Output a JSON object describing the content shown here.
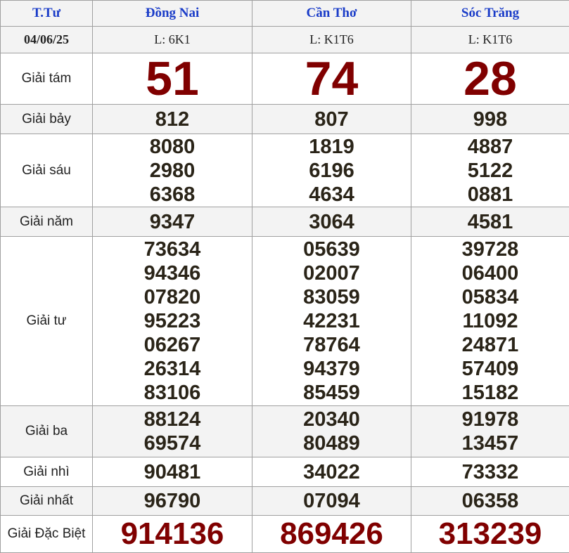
{
  "header": {
    "day": "T.Tư",
    "provinces": [
      "Đồng Nai",
      "Cần Thơ",
      "Sóc Trăng"
    ]
  },
  "lottery": {
    "date": "04/06/25",
    "codes": [
      "L: 6K1",
      "L: K1T6",
      "L: K1T6"
    ]
  },
  "prizes": [
    {
      "label": "Giải tám",
      "values": [
        [
          "51"
        ],
        [
          "74"
        ],
        [
          "28"
        ]
      ]
    },
    {
      "label": "Giải bảy",
      "values": [
        [
          "812"
        ],
        [
          "807"
        ],
        [
          "998"
        ]
      ]
    },
    {
      "label": "Giải sáu",
      "values": [
        [
          "8080",
          "2980",
          "6368"
        ],
        [
          "1819",
          "6196",
          "4634"
        ],
        [
          "4887",
          "5122",
          "0881"
        ]
      ]
    },
    {
      "label": "Giải năm",
      "values": [
        [
          "9347"
        ],
        [
          "3064"
        ],
        [
          "4581"
        ]
      ]
    },
    {
      "label": "Giải tư",
      "values": [
        [
          "73634",
          "94346",
          "07820",
          "95223",
          "06267",
          "26314",
          "83106"
        ],
        [
          "05639",
          "02007",
          "83059",
          "42231",
          "78764",
          "94379",
          "85459"
        ],
        [
          "39728",
          "06400",
          "05834",
          "11092",
          "24871",
          "57409",
          "15182"
        ]
      ]
    },
    {
      "label": "Giải ba",
      "values": [
        [
          "88124",
          "69574"
        ],
        [
          "20340",
          "80489"
        ],
        [
          "91978",
          "13457"
        ]
      ]
    },
    {
      "label": "Giải nhì",
      "values": [
        [
          "90481"
        ],
        [
          "34022"
        ],
        [
          "73332"
        ]
      ]
    },
    {
      "label": "Giải nhất",
      "values": [
        [
          "96790"
        ],
        [
          "07094"
        ],
        [
          "06358"
        ]
      ]
    },
    {
      "label": "Giải Đặc Biệt",
      "values": [
        [
          "914136"
        ],
        [
          "869426"
        ],
        [
          "313239"
        ]
      ]
    }
  ],
  "colors": {
    "header_text": "#1a3cc8",
    "highlight": "#800000",
    "number": "#2a2418",
    "row_alt": "#f3f3f3"
  }
}
